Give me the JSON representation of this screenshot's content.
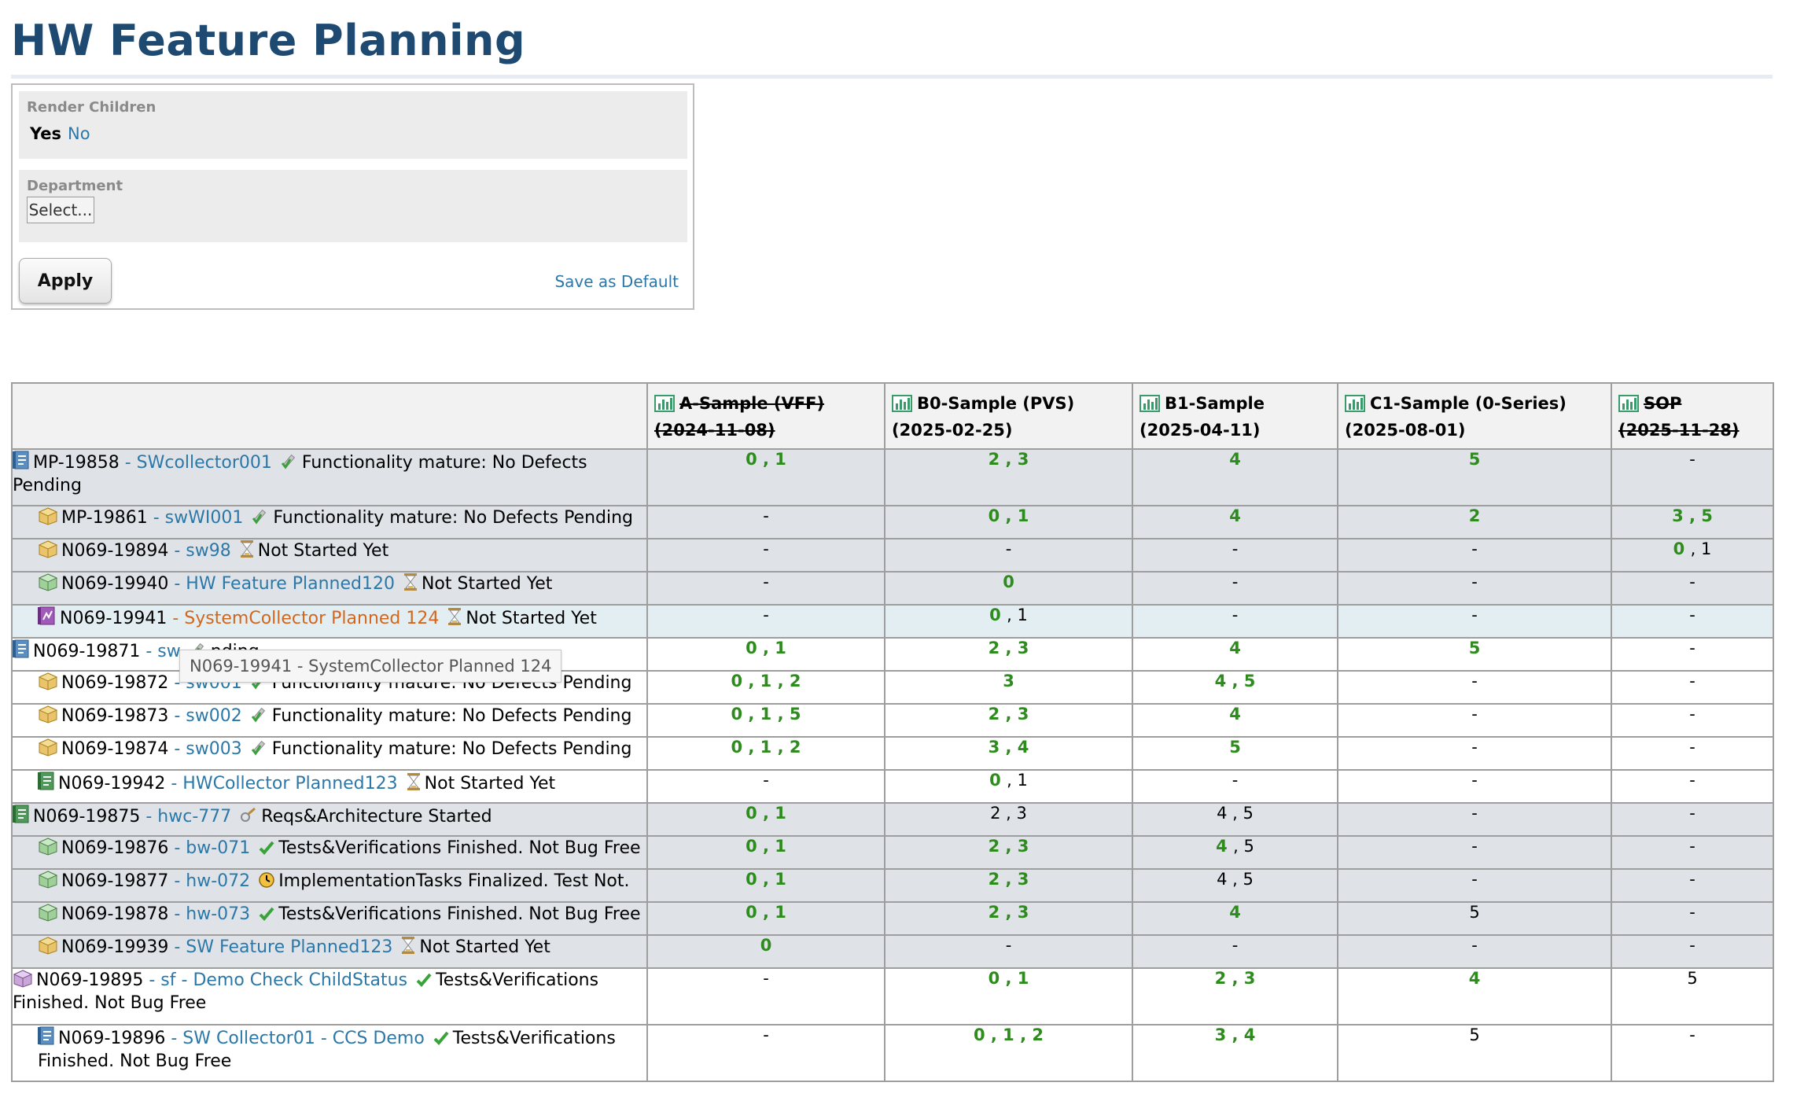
{
  "page": {
    "title": "HW Feature Planning"
  },
  "filters": {
    "render_children": {
      "label": "Render Children",
      "yes": "Yes",
      "no": "No"
    },
    "department": {
      "label": "Department",
      "select_value": "Select..."
    },
    "apply": "Apply",
    "save_default": "Save as Default"
  },
  "table": {
    "columns": [
      {
        "name": "A-Sample (VFF)",
        "date": "(2024-11-08)",
        "struck": true
      },
      {
        "name": "B0-Sample (PVS)",
        "date": "(2025-02-25)",
        "struck": false
      },
      {
        "name": "B1-Sample",
        "date": "(2025-04-11)",
        "struck": false
      },
      {
        "name": "C1-Sample (0-Series)",
        "date": "(2025-08-01)",
        "struck": false
      },
      {
        "name": "SOP",
        "date": "(2025-11-28)",
        "struck": true
      }
    ],
    "rows": [
      {
        "id": "MP-19858",
        "title": "- SWcollector001",
        "status": "Functionality mature: No Defects Pending",
        "icon": "spec-doc-icon",
        "level": 0,
        "shade": "shade",
        "cells": [
          "0 , 1",
          "2 , 3",
          "4",
          "5",
          "-"
        ],
        "colors": [
          "g",
          "g",
          "g",
          "g",
          "b"
        ]
      },
      {
        "id": "MP-19861",
        "title": "- swWI001",
        "status": "Functionality mature: No Defects Pending",
        "icon": "package-icon",
        "level": 1,
        "shade": "shade",
        "cells": [
          "-",
          "0 , 1",
          "4",
          "2",
          "3 , 5"
        ],
        "colors": [
          "b",
          "g",
          "g",
          "g",
          "g"
        ]
      },
      {
        "id": "N069-19894",
        "title": "- sw98",
        "status": "Not Started Yet",
        "icon": "package-icon",
        "level": 1,
        "shade": "shade",
        "cells": [
          "-",
          "-",
          "-",
          "-",
          "0 , 1"
        ],
        "colors": [
          "b",
          "b",
          "b",
          "b",
          "mix01"
        ]
      },
      {
        "id": "N069-19940",
        "title": "- HW Feature Planned120",
        "status": "Not Started Yet",
        "icon": "hw-cube-icon",
        "level": 1,
        "shade": "shade",
        "cells": [
          "-",
          "0",
          "-",
          "-",
          "-"
        ],
        "colors": [
          "b",
          "g",
          "b",
          "b",
          "b"
        ]
      },
      {
        "id": "N069-19941",
        "title": "- SystemCollector Planned 124",
        "status": "Not Started Yet",
        "icon": "system-icon",
        "level": 1,
        "shade": "hl",
        "title_color": "orange",
        "cells": [
          "-",
          "0 , 1",
          "-",
          "-",
          "-"
        ],
        "colors": [
          "b",
          "mix01",
          "b",
          "b",
          "b"
        ]
      },
      {
        "id": "N069-19871",
        "title": "- sw",
        "status": "nding",
        "icon": "spec-doc-icon",
        "level": 0,
        "shade": "white",
        "cells": [
          "0 , 1",
          "2 , 3",
          "4",
          "5",
          "-"
        ],
        "colors": [
          "g",
          "g",
          "g",
          "g",
          "b"
        ]
      },
      {
        "id": "N069-19872",
        "title": "- sw001",
        "status": "Functionality mature: No Defects Pending",
        "icon": "package-icon",
        "level": 1,
        "shade": "white",
        "cells": [
          "0 , 1 , 2",
          "3",
          "4 , 5",
          "-",
          "-"
        ],
        "colors": [
          "g",
          "g",
          "g",
          "b",
          "b"
        ]
      },
      {
        "id": "N069-19873",
        "title": "- sw002",
        "status": "Functionality mature: No Defects Pending",
        "icon": "package-icon",
        "level": 1,
        "shade": "white",
        "cells": [
          "0 , 1 , 5",
          "2 , 3",
          "4",
          "-",
          "-"
        ],
        "colors": [
          "g",
          "g",
          "g",
          "b",
          "b"
        ]
      },
      {
        "id": "N069-19874",
        "title": "- sw003",
        "status": "Functionality mature: No Defects Pending",
        "icon": "package-icon",
        "level": 1,
        "shade": "white",
        "cells": [
          "0 , 1 , 2",
          "3 , 4",
          "5",
          "-",
          "-"
        ],
        "colors": [
          "g",
          "g",
          "g",
          "b",
          "b"
        ]
      },
      {
        "id": "N069-19942",
        "title": "- HWCollector Planned123",
        "status": "Not Started Yet",
        "icon": "hw-doc-icon",
        "level": 1,
        "shade": "white",
        "cells": [
          "-",
          "0 , 1",
          "-",
          "-",
          "-"
        ],
        "colors": [
          "b",
          "mix01",
          "b",
          "b",
          "b"
        ]
      },
      {
        "id": "N069-19875",
        "title": "- hwc-777",
        "status": "Reqs&Architecture Started",
        "icon": "hw-doc-icon",
        "level": 0,
        "shade": "shade",
        "cells": [
          "0 , 1",
          "2 , 3",
          "4 , 5",
          "-",
          "-"
        ],
        "colors": [
          "g",
          "b",
          "b",
          "b",
          "b"
        ]
      },
      {
        "id": "N069-19876",
        "title": "- bw-071",
        "status": "Tests&Verifications Finished. Not Bug Free",
        "icon": "hw-cube-icon",
        "level": 1,
        "shade": "shade",
        "cells": [
          "0 , 1",
          "2 , 3",
          "4 , 5",
          "-",
          "-"
        ],
        "colors": [
          "g",
          "g",
          "mix45",
          "b",
          "b"
        ]
      },
      {
        "id": "N069-19877",
        "title": "- hw-072",
        "status": "ImplementationTasks Finalized. Test Not.",
        "icon": "hw-cube-icon",
        "level": 1,
        "shade": "shade",
        "cells": [
          "0 , 1",
          "2 , 3",
          "4 , 5",
          "-",
          "-"
        ],
        "colors": [
          "g",
          "g",
          "b",
          "b",
          "b"
        ]
      },
      {
        "id": "N069-19878",
        "title": "- hw-073",
        "status": "Tests&Verifications Finished. Not Bug Free",
        "icon": "hw-cube-icon",
        "level": 1,
        "shade": "shade",
        "cells": [
          "0 , 1",
          "2 , 3",
          "4",
          "5",
          "-"
        ],
        "colors": [
          "g",
          "g",
          "g",
          "b",
          "b"
        ]
      },
      {
        "id": "N069-19939",
        "title": "- SW Feature Planned123",
        "status": "Not Started Yet",
        "icon": "package-icon",
        "level": 1,
        "shade": "shade",
        "cells": [
          "0",
          "-",
          "-",
          "-",
          "-"
        ],
        "colors": [
          "g",
          "b",
          "b",
          "b",
          "b"
        ]
      },
      {
        "id": "N069-19895",
        "title": "- sf - Demo Check ChildStatus",
        "status": "Tests&Verifications Finished. Not Bug Free",
        "icon": "purple-cube-icon",
        "level": 0,
        "shade": "white",
        "cells": [
          "-",
          "0 , 1",
          "2 , 3",
          "4",
          "5"
        ],
        "colors": [
          "b",
          "g",
          "g",
          "g",
          "b"
        ]
      },
      {
        "id": "N069-19896",
        "title": "- SW Collector01 - CCS Demo",
        "status": "Tests&Verifications Finished. Not Bug Free",
        "icon": "spec-doc-icon",
        "level": 1,
        "shade": "white",
        "cells": [
          "-",
          "0 , 1 , 2",
          "3 , 4",
          "5",
          "-"
        ],
        "colors": [
          "b",
          "g",
          "g",
          "b",
          "b"
        ]
      }
    ]
  },
  "tooltip": "N069-19941 - SystemCollector Planned 124"
}
